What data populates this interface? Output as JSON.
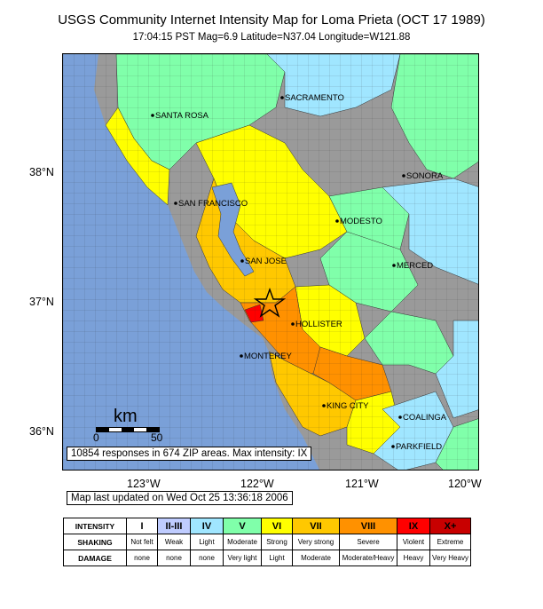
{
  "title": "USGS Community Internet Intensity Map for Loma Prieta (OCT 17 1989)",
  "subtitle": "17:04:15 PST Mag=6.9 Latitude=N37.04 Longitude=W121.88",
  "lat_ticks": [
    "38°N",
    "37°N",
    "36°N"
  ],
  "lon_ticks": [
    "123°W",
    "122°W",
    "121°W",
    "120°W"
  ],
  "cities": [
    "SACRAMENTO",
    "SANTA ROSA",
    "SONORA",
    "SAN FRANCISCO",
    "MODESTO",
    "SAN JOSE",
    "MERCED",
    "HOLLISTER",
    "MONTEREY",
    "KING CITY",
    "COALINGA",
    "PARKFIELD"
  ],
  "scale": {
    "unit": "km",
    "min_label": "0",
    "max_label": "50"
  },
  "stats": "10854 responses in 674 ZIP areas. Max intensity: IX",
  "updated": "Map last updated on Wed Oct 25 13:36:18 2006",
  "colors": {
    "ocean": "#7aa0d8",
    "land": "#9a9a9a",
    "I": "#ffffff",
    "II-III": "#bfccff",
    "IV": "#a0e6ff",
    "V": "#80ffaa",
    "VI": "#ffff00",
    "VII": "#ffc800",
    "VIII": "#ff9100",
    "IX": "#ff0000",
    "X+": "#c80000"
  },
  "legend": {
    "row_headers": [
      "INTENSITY",
      "SHAKING",
      "DAMAGE"
    ],
    "levels": [
      {
        "intensity": "I",
        "shaking": "Not felt",
        "damage": "none"
      },
      {
        "intensity": "II-III",
        "shaking": "Weak",
        "damage": "none"
      },
      {
        "intensity": "IV",
        "shaking": "Light",
        "damage": "none"
      },
      {
        "intensity": "V",
        "shaking": "Moderate",
        "damage": "Very light"
      },
      {
        "intensity": "VI",
        "shaking": "Strong",
        "damage": "Light"
      },
      {
        "intensity": "VII",
        "shaking": "Very strong",
        "damage": "Moderate"
      },
      {
        "intensity": "VIII",
        "shaking": "Severe",
        "damage": "Moderate/Heavy"
      },
      {
        "intensity": "IX",
        "shaking": "Violent",
        "damage": "Heavy"
      },
      {
        "intensity": "X+",
        "shaking": "Extreme",
        "damage": "Very Heavy"
      }
    ]
  }
}
